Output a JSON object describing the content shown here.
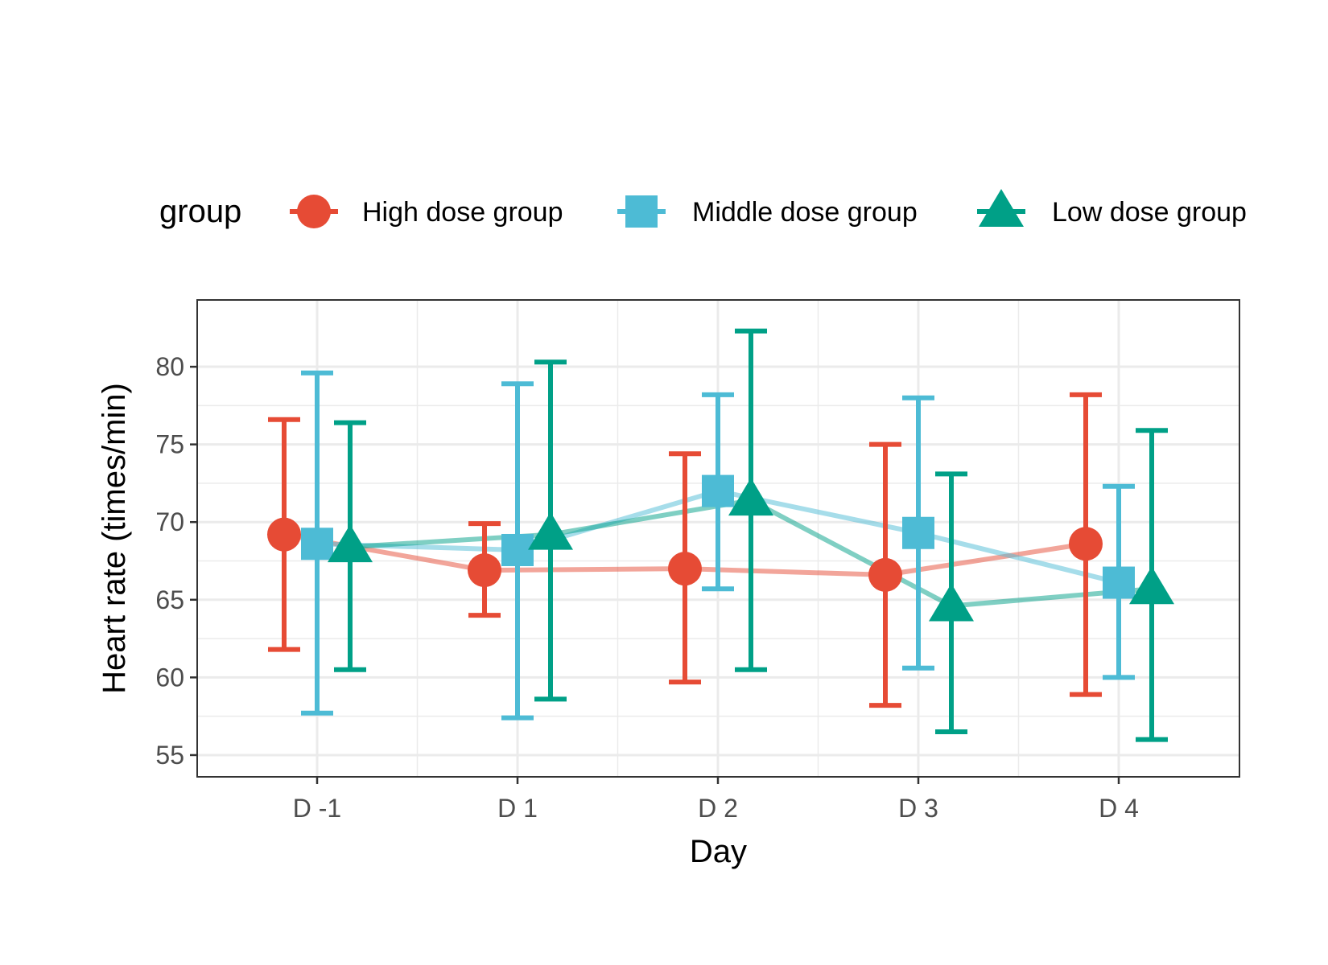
{
  "chart_data": {
    "type": "line",
    "xlabel": "Day",
    "ylabel": "Heart rate (times/min)",
    "categories": [
      "D -1",
      "D 1",
      "D 2",
      "D 3",
      "D 4"
    ],
    "yticks": [
      55,
      60,
      65,
      70,
      75,
      80
    ],
    "ylim": [
      53.6,
      84.3
    ],
    "grid": true,
    "legend": {
      "title": "group",
      "position": "top"
    },
    "series": [
      {
        "name": "High dose group",
        "color": "#E64B35",
        "marker": "circle",
        "mean": [
          69.2,
          66.9,
          67.0,
          66.6,
          68.6
        ],
        "lower": [
          61.8,
          64.0,
          59.7,
          58.2,
          58.9
        ],
        "upper": [
          76.6,
          69.9,
          74.4,
          75.0,
          78.2
        ]
      },
      {
        "name": "Middle dose group",
        "color": "#4DBBD5",
        "marker": "square",
        "mean": [
          68.6,
          68.2,
          72.0,
          69.3,
          66.1
        ],
        "lower": [
          57.7,
          57.4,
          65.7,
          60.6,
          60.0
        ],
        "upper": [
          79.6,
          78.9,
          78.2,
          78.0,
          72.3
        ]
      },
      {
        "name": "Low dose group",
        "color": "#00A087",
        "marker": "triangle",
        "mean": [
          68.4,
          69.2,
          71.4,
          64.6,
          65.7
        ],
        "lower": [
          60.5,
          58.6,
          60.5,
          56.5,
          56.0
        ],
        "upper": [
          76.4,
          80.3,
          82.3,
          73.1,
          75.9
        ]
      }
    ]
  }
}
